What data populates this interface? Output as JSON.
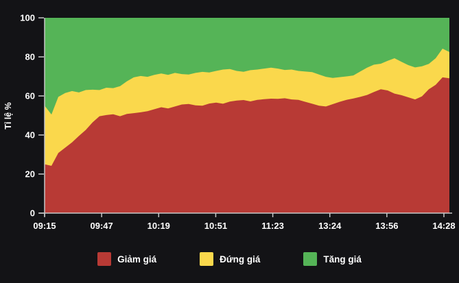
{
  "page": {
    "background": "#131316"
  },
  "chart": {
    "y_axis": {
      "title": "Tỉ lệ %",
      "tick_labels": [
        "0",
        "20",
        "40",
        "60",
        "80",
        "100"
      ],
      "tick_values": [
        0,
        20,
        40,
        60,
        80,
        100
      ]
    },
    "x_axis": {
      "tick_labels": [
        "09:15",
        "09:47",
        "10:19",
        "10:51",
        "11:23",
        "13:24",
        "13:56",
        "14:28"
      ]
    },
    "colors": {
      "decline": "#b83a35",
      "unchanged": "#fad84c",
      "advance": "#55b457",
      "axis": "#c8c8c8",
      "text": "#ffffff",
      "background": "#131316"
    },
    "legend": [
      {
        "label": "Giảm giá",
        "color": "#b83a35"
      },
      {
        "label": "Đứng giá",
        "color": "#fad84c"
      },
      {
        "label": "Tăng giá",
        "color": "#55b457"
      }
    ]
  },
  "chart_data": {
    "type": "area",
    "stacked": true,
    "unit": "%",
    "title": "",
    "ylabel": "Tỉ lệ %",
    "xlabel": "",
    "ylim": [
      0,
      100
    ],
    "grid": false,
    "legend_position": "bottom",
    "x_tick_labels": [
      "09:15",
      "09:47",
      "10:19",
      "10:51",
      "11:23",
      "13:24",
      "13:56",
      "14:28"
    ],
    "series": [
      {
        "name": "Giảm giá",
        "color": "#b83a35",
        "values": [
          25.0,
          24.2,
          30.8,
          33.5,
          36.2,
          39.5,
          42.6,
          46.5,
          49.6,
          50.2,
          50.6,
          49.6,
          50.8,
          51.2,
          51.6,
          52.2,
          53.2,
          54.2,
          53.6,
          54.6,
          55.6,
          55.9,
          55.2,
          55.0,
          56.1,
          56.6,
          56.0,
          57.1,
          57.6,
          57.9,
          57.2,
          58.0,
          58.3,
          58.6,
          58.5,
          58.8,
          58.2,
          58.0,
          57.0,
          56.0,
          55.0,
          54.6,
          55.8,
          57.0,
          58.0,
          58.7,
          59.5,
          60.5,
          62.0,
          63.4,
          62.8,
          61.2,
          60.4,
          59.3,
          58.2,
          59.8,
          63.4,
          65.7,
          69.5,
          69.0
        ]
      },
      {
        "name": "Đứng giá",
        "color": "#fad84c",
        "values": [
          30.0,
          26.3,
          28.7,
          28.0,
          26.3,
          22.3,
          20.4,
          16.7,
          13.4,
          14.0,
          13.4,
          15.4,
          16.7,
          18.3,
          18.6,
          17.6,
          17.6,
          17.3,
          17.2,
          17.2,
          15.6,
          15.1,
          16.6,
          17.3,
          15.9,
          16.2,
          17.5,
          16.7,
          15.2,
          14.5,
          16.0,
          15.5,
          15.7,
          15.9,
          15.5,
          14.5,
          15.3,
          14.8,
          15.5,
          16.2,
          16.0,
          15.2,
          13.4,
          12.6,
          12.0,
          11.8,
          13.0,
          14.0,
          14.0,
          13.1,
          15.2,
          18.1,
          17.1,
          16.5,
          16.4,
          15.4,
          13.0,
          13.6,
          14.7,
          13.5
        ]
      },
      {
        "name": "Tăng giá",
        "color": "#55b457",
        "values": [
          45.0,
          49.5,
          40.5,
          38.5,
          37.5,
          38.2,
          37.0,
          36.8,
          37.0,
          35.8,
          36.0,
          35.0,
          32.5,
          30.5,
          29.8,
          30.2,
          29.2,
          28.5,
          29.2,
          28.2,
          28.8,
          29.0,
          28.2,
          27.7,
          28.0,
          27.2,
          26.5,
          26.2,
          27.2,
          27.6,
          26.8,
          26.5,
          26.0,
          25.5,
          26.0,
          26.7,
          26.5,
          27.2,
          27.5,
          27.8,
          29.0,
          30.2,
          30.8,
          30.4,
          30.0,
          29.5,
          27.5,
          25.5,
          24.0,
          23.5,
          22.0,
          20.7,
          22.5,
          24.2,
          25.4,
          24.8,
          23.6,
          20.7,
          15.8,
          17.5
        ]
      }
    ]
  }
}
